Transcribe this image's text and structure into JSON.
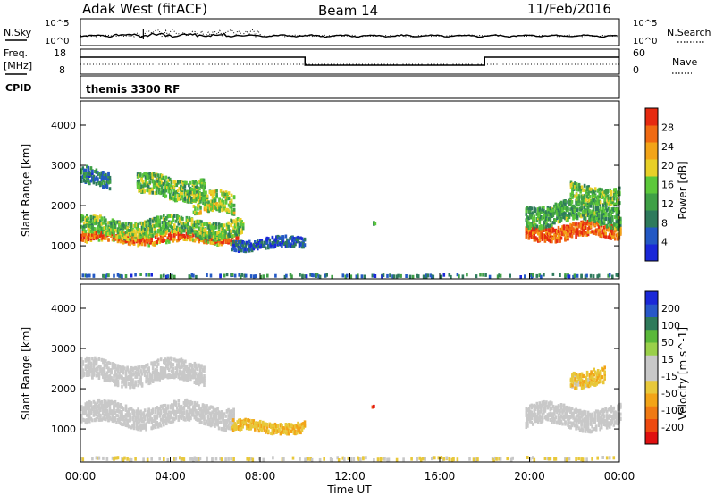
{
  "header": {
    "station": "Adak West (fitACF)",
    "beam": "Beam 14",
    "date": "11/Feb/2016"
  },
  "top_panels": {
    "nsky_label": "N.Sky",
    "nsearch_label": "N.Search",
    "noise_ticks_left": [
      "10^5",
      "10^0"
    ],
    "noise_ticks_right": [
      "10^5",
      "10^0"
    ],
    "freq_label": "Freq.",
    "freq_unit": "[MHz]",
    "freq_ticks": [
      "18",
      "8"
    ],
    "nave_ticks": [
      "60",
      "0"
    ],
    "nave_label": "Nave",
    "cpid_label": "CPID",
    "cpid_value": "themis 3300 RF"
  },
  "colors": {
    "power": [
      "#1a28d8",
      "#2358c4",
      "#2e7a5c",
      "#3fa046",
      "#5cc83a",
      "#e8d028",
      "#f2a418",
      "#f06a12",
      "#e62a10"
    ],
    "velocity": [
      "#e01010",
      "#ee4a10",
      "#f07a14",
      "#f2a418",
      "#e8c83a",
      "#c8c8c8",
      "#c8c8c8",
      "#9ad04a",
      "#5ab83a",
      "#2f7a5a",
      "#2858c8",
      "#1a28d8"
    ],
    "ground_scatter": "#c8c8c8"
  },
  "chart_data": [
    {
      "type": "heatmap",
      "name": "Power",
      "xlabel": "",
      "ylabel": "Slant Range [km]",
      "y_ticks": [
        "1000",
        "2000",
        "3000",
        "4000"
      ],
      "ylim": [
        180,
        4600
      ],
      "xlim_hours": [
        0,
        24
      ],
      "colorbar_label": "Power [dB]",
      "colorbar_ticks": [
        "4",
        "8",
        "12",
        "16",
        "20",
        "24",
        "28"
      ],
      "colorbar_range": [
        0,
        30
      ],
      "regions": [
        {
          "t": [
            0,
            7
          ],
          "r_center": 1200,
          "r_width": 260,
          "value": 28,
          "note": "core"
        },
        {
          "t": [
            0,
            7.2
          ],
          "r_center": 1450,
          "r_width": 420,
          "value": 14
        },
        {
          "t": [
            0,
            1.3
          ],
          "r_center": 2700,
          "r_width": 400,
          "value": 8
        },
        {
          "t": [
            2.5,
            5.5
          ],
          "r_center": 2450,
          "r_width": 500,
          "value": 14
        },
        {
          "t": [
            5,
            6.8
          ],
          "r_center": 2000,
          "r_width": 500,
          "value": 16
        },
        {
          "t": [
            6.7,
            10
          ],
          "r_center": 1050,
          "r_width": 250,
          "value": 5
        },
        {
          "t": [
            12.9,
            13.1
          ],
          "r_center": 1560,
          "r_width": 80,
          "value": 12
        },
        {
          "t": [
            19.8,
            24
          ],
          "r_center": 1350,
          "r_width": 350,
          "value": 26
        },
        {
          "t": [
            19.8,
            24
          ],
          "r_center": 1800,
          "r_width": 500,
          "value": 12
        },
        {
          "t": [
            21.8,
            24
          ],
          "r_center": 2300,
          "r_width": 400,
          "value": 14
        },
        {
          "t": [
            0,
            24
          ],
          "r_center": 250,
          "r_width": 60,
          "value": 8
        }
      ]
    },
    {
      "type": "heatmap",
      "name": "Velocity",
      "xlabel": "Time UT",
      "ylabel": "Slant Range [km]",
      "x_ticks": [
        "00:00",
        "04:00",
        "08:00",
        "12:00",
        "16:00",
        "20:00",
        "00:00"
      ],
      "y_ticks": [
        "1000",
        "2000",
        "3000",
        "4000"
      ],
      "ylim": [
        180,
        4600
      ],
      "xlim_hours": [
        0,
        24
      ],
      "colorbar_label": "Velocity [m s^-1]",
      "colorbar_ticks": [
        "-200",
        "-100",
        "-50",
        "-15",
        "15",
        "50",
        "100",
        "200"
      ],
      "colorbar_range": [
        -250,
        250
      ],
      "regions": [
        {
          "t": [
            0,
            6.8
          ],
          "r_center": 1350,
          "r_width": 500,
          "value": 0
        },
        {
          "t": [
            0,
            5.5
          ],
          "r_center": 2400,
          "r_width": 500,
          "value": 0
        },
        {
          "t": [
            6.7,
            10
          ],
          "r_center": 1050,
          "r_width": 250,
          "value": -80
        },
        {
          "t": [
            12.9,
            13.1
          ],
          "r_center": 1520,
          "r_width": 80,
          "value": -230
        },
        {
          "t": [
            19.8,
            24
          ],
          "r_center": 1300,
          "r_width": 500,
          "value": 0
        },
        {
          "t": [
            21.8,
            23.3
          ],
          "r_center": 2300,
          "r_width": 400,
          "value": -70
        },
        {
          "t": [
            0,
            24
          ],
          "r_center": 250,
          "r_width": 60,
          "value": -40
        }
      ]
    }
  ]
}
